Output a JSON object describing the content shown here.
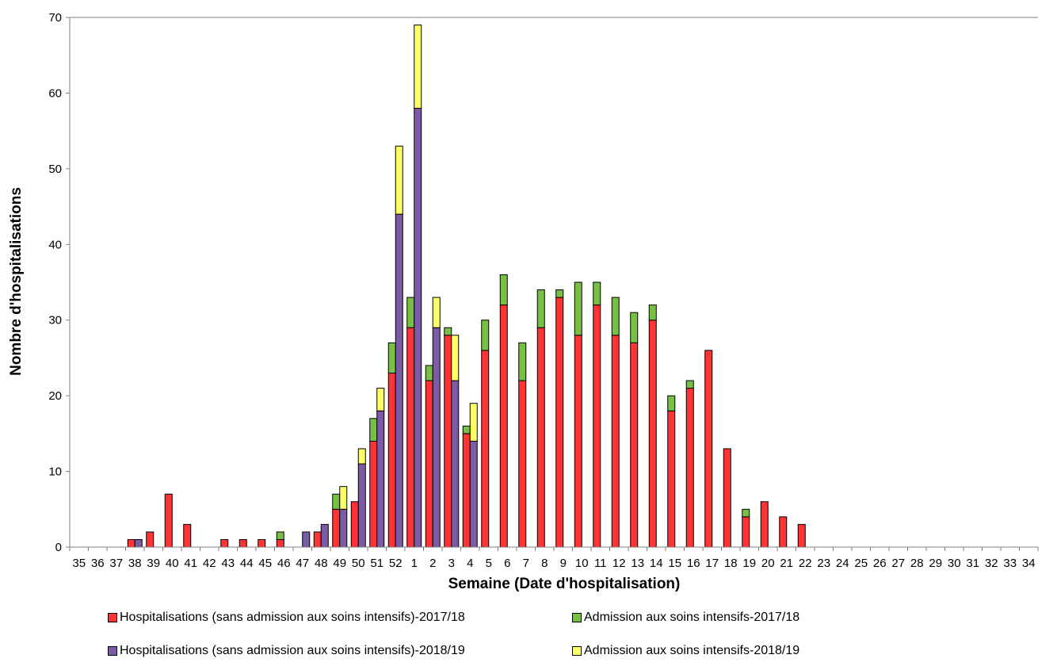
{
  "chart_data": {
    "type": "bar",
    "stacked": true,
    "xlabel": "Semaine (Date d'hospitalisation)",
    "ylabel": "Nombre d'hospitalisations",
    "ylim": [
      0,
      70
    ],
    "yticks": [
      0,
      10,
      20,
      30,
      40,
      50,
      60,
      70
    ],
    "grid": false,
    "legend_position": "bottom",
    "categories": [
      "35",
      "36",
      "37",
      "38",
      "39",
      "40",
      "41",
      "42",
      "43",
      "44",
      "45",
      "46",
      "47",
      "48",
      "49",
      "50",
      "51",
      "52",
      "1",
      "2",
      "3",
      "4",
      "5",
      "6",
      "7",
      "8",
      "9",
      "10",
      "11",
      "12",
      "13",
      "14",
      "15",
      "16",
      "17",
      "18",
      "19",
      "20",
      "21",
      "22",
      "23",
      "24",
      "25",
      "26",
      "27",
      "28",
      "29",
      "30",
      "31",
      "32",
      "33",
      "34"
    ],
    "season_groups": [
      {
        "season": "2017/18",
        "series": [
          {
            "name": "Hospitalisations (sans admission aux soins intensifs)-2017/18",
            "color": "#ff3333",
            "values": [
              0,
              0,
              0,
              1,
              2,
              7,
              3,
              0,
              1,
              1,
              1,
              1,
              0,
              2,
              5,
              6,
              14,
              23,
              29,
              22,
              28,
              15,
              26,
              32,
              22,
              29,
              33,
              28,
              32,
              28,
              27,
              30,
              18,
              21,
              26,
              13,
              4,
              6,
              4,
              3,
              0,
              0,
              0,
              0,
              0,
              0,
              0,
              0,
              0,
              0,
              0,
              0
            ]
          },
          {
            "name": "Admission aux soins intensifs-2017/18",
            "color": "#77c044",
            "values": [
              0,
              0,
              0,
              0,
              0,
              0,
              0,
              0,
              0,
              0,
              0,
              1,
              0,
              0,
              2,
              0,
              3,
              4,
              4,
              2,
              1,
              1,
              4,
              4,
              5,
              5,
              1,
              7,
              3,
              5,
              4,
              2,
              2,
              1,
              0,
              0,
              1,
              0,
              0,
              0,
              0,
              0,
              0,
              0,
              0,
              0,
              0,
              0,
              0,
              0,
              0,
              0
            ]
          }
        ]
      },
      {
        "season": "2018/19",
        "series": [
          {
            "name": "Hospitalisations (sans admission aux soins intensifs)-2018/19",
            "color": "#7b5aa6",
            "values": [
              0,
              0,
              0,
              1,
              0,
              0,
              0,
              0,
              0,
              0,
              0,
              0,
              2,
              3,
              5,
              11,
              18,
              44,
              58,
              29,
              22,
              14,
              0,
              0,
              0,
              0,
              0,
              0,
              0,
              0,
              0,
              0,
              0,
              0,
              0,
              0,
              0,
              0,
              0,
              0,
              0,
              0,
              0,
              0,
              0,
              0,
              0,
              0,
              0,
              0,
              0,
              0
            ]
          },
          {
            "name": "Admission aux soins intensifs-2018/19",
            "color": "#ffff66",
            "values": [
              0,
              0,
              0,
              0,
              0,
              0,
              0,
              0,
              0,
              0,
              0,
              0,
              0,
              0,
              3,
              2,
              3,
              9,
              11,
              4,
              6,
              5,
              0,
              0,
              0,
              0,
              0,
              0,
              0,
              0,
              0,
              0,
              0,
              0,
              0,
              0,
              0,
              0,
              0,
              0,
              0,
              0,
              0,
              0,
              0,
              0,
              0,
              0,
              0,
              0,
              0,
              0
            ]
          }
        ]
      }
    ]
  },
  "legend": [
    {
      "label": "Hospitalisations (sans admission aux soins intensifs)-2017/18",
      "color": "#ff3333"
    },
    {
      "label": "Admission aux soins intensifs-2017/18",
      "color": "#77c044"
    },
    {
      "label": "Hospitalisations (sans admission aux soins intensifs)-2018/19",
      "color": "#7b5aa6"
    },
    {
      "label": "Admission aux soins intensifs-2018/19",
      "color": "#ffff66"
    }
  ]
}
